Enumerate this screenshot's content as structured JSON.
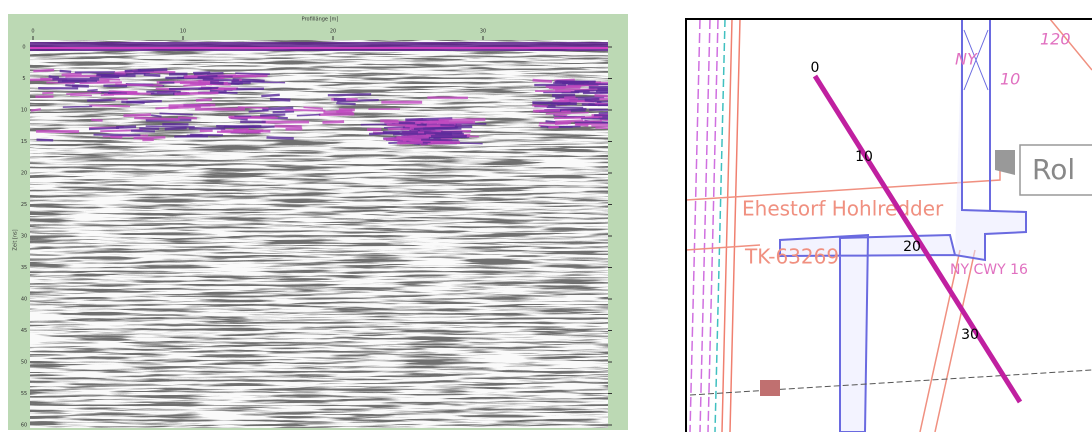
{
  "radargram": {
    "x_axis_label": "Profillänge [m]",
    "y_axis_label": "Zeit [ns]",
    "x_ticks": [
      "0",
      "10",
      "20",
      "30"
    ],
    "y_ticks": [
      "0",
      "5",
      "10",
      "15",
      "20",
      "25",
      "30",
      "35",
      "40",
      "45",
      "50",
      "55",
      "60"
    ]
  },
  "map": {
    "distance_labels": [
      "0",
      "10",
      "20",
      "30"
    ],
    "labels": {
      "road": "Ehestorf Hohlredder",
      "parcel": "TK-63269",
      "cable": "NY CWY 16",
      "sign": "Rol",
      "top_ny": "NY",
      "top_number": "120",
      "top_ten": "10"
    }
  }
}
